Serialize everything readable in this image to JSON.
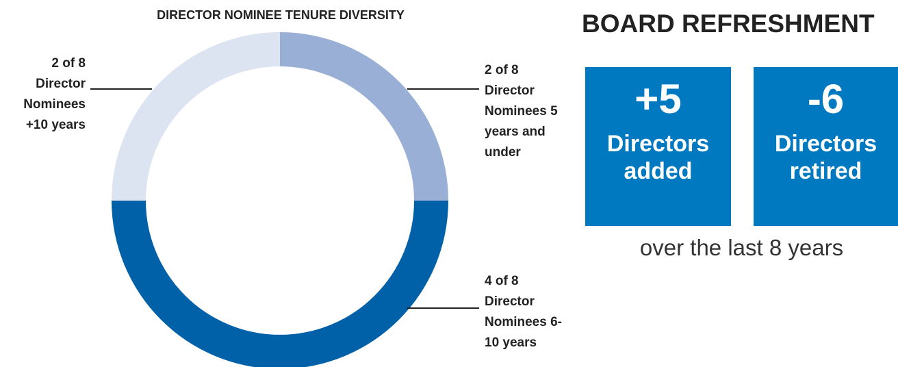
{
  "chart_data": {
    "type": "donut",
    "title": "DIRECTOR NOMINEE TENURE DIVERSITY",
    "categories": [
      "Director Nominees 5 years and under",
      "Director Nominees 6-10 years",
      "Director Nominees +10 years"
    ],
    "values": [
      2,
      4,
      2
    ],
    "value_labels": [
      "2 of 8",
      "4 of 8",
      "2 of 8"
    ],
    "colors": [
      "#9aafd6",
      "#0061a8",
      "#dce3f1"
    ]
  },
  "board_refreshment": {
    "title": "BOARD REFRESHMENT",
    "boxes": [
      {
        "value": "+5",
        "label": "Directors added"
      },
      {
        "value": "-6",
        "label": "Directors retired"
      }
    ],
    "note": "over the last 8 years"
  }
}
